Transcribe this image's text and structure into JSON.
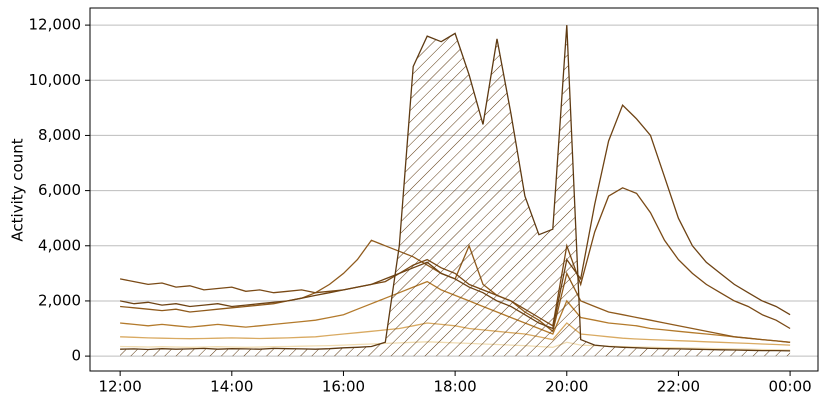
{
  "chart_data": {
    "type": "line",
    "y_label": "Activity count",
    "x": [
      12,
      12.25,
      12.5,
      12.75,
      13,
      13.25,
      13.5,
      13.75,
      14,
      14.25,
      14.5,
      14.75,
      15,
      15.25,
      15.5,
      15.75,
      16,
      16.25,
      16.5,
      16.75,
      17,
      17.25,
      17.5,
      17.75,
      18,
      18.25,
      18.5,
      18.75,
      19,
      19.25,
      19.5,
      19.75,
      20,
      20.25,
      20.5,
      20.75,
      21,
      21.25,
      21.5,
      21.75,
      22,
      22.25,
      22.5,
      22.75,
      23,
      23.25,
      23.5,
      23.75,
      24
    ],
    "xlim": [
      11.46,
      24.5
    ],
    "xticks": [
      {
        "value": 12,
        "label": "12:00"
      },
      {
        "value": 14,
        "label": "14:00"
      },
      {
        "value": 16,
        "label": "16:00"
      },
      {
        "value": 18,
        "label": "18:00"
      },
      {
        "value": 20,
        "label": "20:00"
      },
      {
        "value": 22,
        "label": "22:00"
      },
      {
        "value": 24,
        "label": "00:00"
      }
    ],
    "ylim": [
      -540,
      12620
    ],
    "yticks": [
      0,
      {
        "value": 2000,
        "label": "2,000"
      },
      {
        "value": 4000,
        "label": "4,000"
      },
      {
        "value": 6000,
        "label": "6,000"
      },
      {
        "value": 8000,
        "label": "8,000"
      },
      {
        "value": 10000,
        "label": "10,000"
      },
      {
        "value": 12000,
        "label": "12,000"
      }
    ],
    "grid": true,
    "series": [
      {
        "color": "#f0dcb2",
        "values": [
          350,
          340,
          330,
          340,
          330,
          320,
          330,
          340,
          330,
          320,
          330,
          340,
          350,
          360,
          370,
          380,
          400,
          420,
          440,
          460,
          480,
          500,
          520,
          500,
          480,
          460,
          440,
          420,
          400,
          380,
          350,
          320,
          500,
          400,
          380,
          360,
          340,
          330,
          320,
          310,
          300,
          290,
          280,
          270,
          260,
          250,
          240,
          230,
          220
        ]
      },
      {
        "color": "#d9aa62",
        "values": [
          700,
          680,
          660,
          650,
          640,
          630,
          640,
          650,
          660,
          650,
          640,
          650,
          660,
          680,
          700,
          750,
          800,
          850,
          900,
          950,
          1000,
          1100,
          1200,
          1150,
          1100,
          1000,
          950,
          900,
          850,
          800,
          700,
          600,
          1200,
          800,
          750,
          700,
          650,
          620,
          600,
          580,
          560,
          540,
          520,
          500,
          480,
          460,
          440,
          420,
          400
        ]
      },
      {
        "color": "#b37a2c",
        "values": [
          1200,
          1150,
          1100,
          1150,
          1100,
          1050,
          1100,
          1150,
          1100,
          1050,
          1100,
          1150,
          1200,
          1250,
          1300,
          1400,
          1500,
          1700,
          1900,
          2100,
          2300,
          2500,
          2700,
          2400,
          2200,
          2000,
          1800,
          1600,
          1400,
          1200,
          1000,
          800,
          2000,
          1400,
          1300,
          1200,
          1150,
          1100,
          1000,
          950,
          900,
          850,
          800,
          750,
          700,
          650,
          600,
          550,
          500
        ]
      },
      {
        "color": "#8f5a1c",
        "values": [
          1800,
          1750,
          1700,
          1650,
          1700,
          1600,
          1650,
          1700,
          1750,
          1800,
          1850,
          1900,
          2000,
          2100,
          2300,
          2600,
          3000,
          3500,
          4200,
          4000,
          3800,
          3600,
          3300,
          3000,
          2800,
          4000,
          2600,
          2200,
          2000,
          1600,
          1300,
          900,
          3000,
          2000,
          1800,
          1600,
          1500,
          1400,
          1300,
          1200,
          1100,
          1000,
          900,
          800,
          700,
          650,
          600,
          550,
          500
        ]
      },
      {
        "color": "#7a4a16",
        "values": [
          2800,
          2700,
          2600,
          2650,
          2500,
          2550,
          2400,
          2450,
          2500,
          2350,
          2400,
          2300,
          2350,
          2400,
          2300,
          2350,
          2400,
          2500,
          2600,
          2700,
          3000,
          3300,
          3500,
          3200,
          3000,
          2600,
          2400,
          2200,
          2000,
          1700,
          1400,
          1100,
          4000,
          2600,
          4500,
          5800,
          6100,
          5900,
          5200,
          4200,
          3500,
          3000,
          2600,
          2300,
          2000,
          1800,
          1500,
          1300,
          1000
        ]
      },
      {
        "color": "#6e4314",
        "values": [
          2000,
          1900,
          1950,
          1850,
          1900,
          1800,
          1850,
          1900,
          1800,
          1850,
          1900,
          1950,
          2000,
          2100,
          2200,
          2300,
          2400,
          2500,
          2600,
          2800,
          3000,
          3200,
          3400,
          3000,
          2800,
          2500,
          2300,
          2000,
          1800,
          1500,
          1200,
          1000,
          3500,
          2800,
          5500,
          7800,
          9100,
          8600,
          8000,
          6500,
          5000,
          4000,
          3400,
          3000,
          2600,
          2300,
          2000,
          1800,
          1500
        ]
      },
      {
        "color": "#5e3a12",
        "hatch": true,
        "values": [
          250,
          260,
          240,
          270,
          250,
          260,
          280,
          250,
          270,
          260,
          250,
          280,
          270,
          260,
          250,
          270,
          300,
          320,
          350,
          500,
          4000,
          10500,
          11600,
          11400,
          11700,
          10200,
          8400,
          11500,
          8800,
          5800,
          4400,
          4600,
          12000,
          600,
          400,
          350,
          320,
          300,
          280,
          270,
          260,
          250,
          240,
          230,
          220,
          210,
          200,
          200,
          190
        ]
      }
    ]
  }
}
